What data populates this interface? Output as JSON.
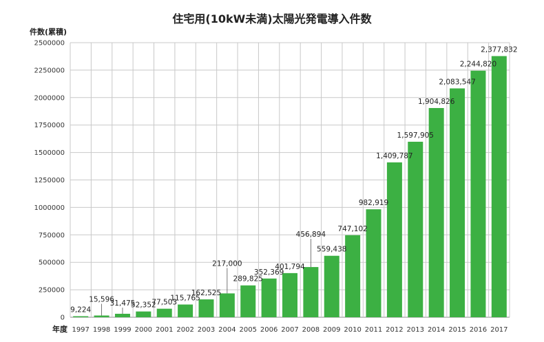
{
  "chart_data": {
    "type": "bar",
    "title": "住宅用(10kW未満)太陽光発電導入件数",
    "ylabel": "件数(累積)",
    "xlabel": "年度",
    "ylim": [
      0,
      2500000
    ],
    "yticks": [
      "0",
      "250000",
      "500000",
      "750000",
      "1000000",
      "1250000",
      "1500000",
      "1750000",
      "2000000",
      "2250000",
      "2500000"
    ],
    "grid": true,
    "bar_color": "#3cb043",
    "categories": [
      "1997",
      "1998",
      "1999",
      "2000",
      "2001",
      "2002",
      "2003",
      "2004",
      "2005",
      "2006",
      "2007",
      "2008",
      "2009",
      "2010",
      "2011",
      "2012",
      "2013",
      "2014",
      "2015",
      "2016",
      "2017"
    ],
    "values": [
      9224,
      15596,
      31475,
      52352,
      77503,
      115765,
      162525,
      217000,
      289825,
      352369,
      401794,
      456894,
      559438,
      747102,
      982919,
      1409787,
      1597905,
      1904826,
      2083547,
      2244820,
      2377832
    ],
    "labels": [
      "9,224",
      "15,596",
      "31,475",
      "52,352",
      "77,503",
      "115,765",
      "162,525",
      "217,000",
      "289,825",
      "352,369",
      "401,794",
      "456,894",
      "559,438",
      "747,102",
      "982,919",
      "1,409,787",
      "1,597,905",
      "1,904,826",
      "2,083,547",
      "2,244,820",
      "2,377,832"
    ]
  }
}
